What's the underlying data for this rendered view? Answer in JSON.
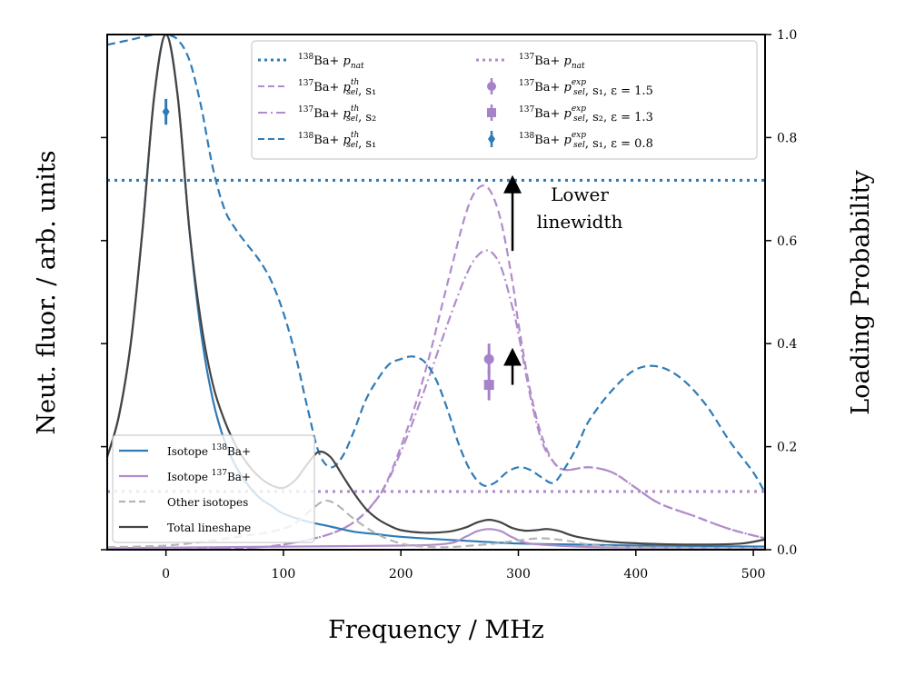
{
  "chart_data": {
    "type": "line",
    "title": "",
    "xlabel": "Frequency / MHz",
    "ylabel_left": "Neut. fluor. / arb. units",
    "ylabel_right": "Loading Probability",
    "xlim": [
      -50,
      510
    ],
    "ylim_left": [
      0,
      1
    ],
    "ylim_right": [
      0.0,
      1.0
    ],
    "x_ticks": [
      0,
      100,
      200,
      300,
      400,
      500
    ],
    "x_tick_labels": [
      "0",
      "100",
      "200",
      "300",
      "400",
      "500"
    ],
    "right_ticks": [
      0.0,
      0.2,
      0.4,
      0.6,
      0.8,
      1.0
    ],
    "right_tick_labels": [
      "0.0",
      "0.2",
      "0.4",
      "0.6",
      "0.8",
      "1.0"
    ],
    "left_ticks": [
      0,
      0.2,
      0.4,
      0.6,
      0.8
    ],
    "lineshape_series": [
      {
        "name": "Isotope 138Ba+",
        "label_base": "Isotope ",
        "label_sup": "138",
        "label_tail": "Ba+",
        "color": "#2f7bb6",
        "style": "solid",
        "x": [
          -50,
          -40,
          -30,
          -20,
          -10,
          0,
          10,
          20,
          30,
          40,
          50,
          60,
          70,
          80,
          90,
          100,
          120,
          140,
          160,
          180,
          200,
          250,
          300,
          350,
          400,
          450,
          510
        ],
        "y": [
          0.18,
          0.26,
          0.4,
          0.62,
          0.88,
          1.0,
          0.88,
          0.62,
          0.42,
          0.29,
          0.21,
          0.16,
          0.125,
          0.1,
          0.085,
          0.07,
          0.055,
          0.045,
          0.035,
          0.03,
          0.025,
          0.018,
          0.012,
          0.01,
          0.008,
          0.007,
          0.006
        ]
      },
      {
        "name": "Isotope 137Ba+",
        "label_base": "Isotope ",
        "label_sup": "137",
        "label_tail": "Ba+",
        "color": "#b08ccc",
        "style": "solid",
        "x": [
          -50,
          0,
          100,
          200,
          240,
          255,
          265,
          275,
          285,
          295,
          310,
          350,
          400,
          510
        ],
        "y": [
          0.003,
          0.004,
          0.006,
          0.008,
          0.012,
          0.025,
          0.036,
          0.04,
          0.036,
          0.024,
          0.012,
          0.006,
          0.004,
          0.003
        ]
      },
      {
        "name": "Other isotopes",
        "color": "#b5b5b5",
        "style": "dashed",
        "x": [
          -50,
          0,
          40,
          70,
          90,
          105,
          115,
          125,
          135,
          145,
          160,
          180,
          200,
          220,
          240,
          260,
          280,
          300,
          320,
          340,
          360,
          380,
          420,
          510
        ],
        "y": [
          0.005,
          0.008,
          0.018,
          0.028,
          0.035,
          0.045,
          0.06,
          0.08,
          0.095,
          0.088,
          0.06,
          0.03,
          0.012,
          0.006,
          0.005,
          0.008,
          0.012,
          0.018,
          0.022,
          0.018,
          0.01,
          0.006,
          0.004,
          0.003
        ]
      },
      {
        "name": "Total lineshape",
        "color": "#444444",
        "style": "solid",
        "x": [
          -50,
          -40,
          -30,
          -20,
          -10,
          0,
          10,
          20,
          30,
          40,
          50,
          60,
          70,
          80,
          90,
          100,
          110,
          120,
          130,
          140,
          150,
          160,
          170,
          180,
          190,
          200,
          220,
          240,
          255,
          265,
          275,
          285,
          295,
          305,
          315,
          325,
          335,
          350,
          380,
          420,
          460,
          490,
          510
        ],
        "y": [
          0.18,
          0.26,
          0.4,
          0.62,
          0.88,
          1.0,
          0.88,
          0.62,
          0.44,
          0.32,
          0.25,
          0.2,
          0.165,
          0.14,
          0.125,
          0.12,
          0.135,
          0.165,
          0.19,
          0.18,
          0.145,
          0.11,
          0.08,
          0.06,
          0.047,
          0.038,
          0.033,
          0.035,
          0.043,
          0.053,
          0.058,
          0.053,
          0.042,
          0.037,
          0.038,
          0.04,
          0.036,
          0.025,
          0.015,
          0.011,
          0.01,
          0.012,
          0.02
        ]
      }
    ],
    "probability_series": [
      {
        "name": "138Ba+ p_nat",
        "label_sup": "138",
        "label_tail": "Ba+",
        "label_p": "p",
        "label_sub": "nat",
        "label_supp": "",
        "label_extra": "",
        "color": "#2f7bb6",
        "style": "dotted",
        "x": [
          -50,
          510
        ],
        "y": [
          0.717,
          0.717
        ]
      },
      {
        "name": "137Ba+ p_nat",
        "label_sup": "137",
        "label_tail": "Ba+",
        "label_p": "p",
        "label_sub": "nat",
        "label_supp": "",
        "label_extra": "",
        "color": "#b08ccc",
        "style": "dotted",
        "x": [
          -50,
          510
        ],
        "y": [
          0.113,
          0.113
        ]
      },
      {
        "name": "137Ba+ p_sel^th, s1",
        "label_sup": "137",
        "label_tail": "Ba+",
        "label_p": "p",
        "label_sub": "sel",
        "label_supp": "th",
        "label_extra": ", s₁",
        "color": "#b08ccc",
        "style": "dashed",
        "x": [
          -50,
          0,
          50,
          100,
          150,
          180,
          200,
          220,
          240,
          255,
          265,
          275,
          285,
          295,
          300,
          310,
          320,
          330,
          340,
          360,
          380,
          400,
          420,
          450,
          480,
          510
        ],
        "y": [
          0.0,
          0.0,
          0.002,
          0.01,
          0.04,
          0.1,
          0.2,
          0.34,
          0.52,
          0.65,
          0.7,
          0.7,
          0.64,
          0.52,
          0.44,
          0.31,
          0.22,
          0.17,
          0.155,
          0.16,
          0.15,
          0.12,
          0.09,
          0.065,
          0.04,
          0.022
        ]
      },
      {
        "name": "137Ba+ p_sel^th, s2",
        "label_sup": "137",
        "label_tail": "Ba+",
        "label_p": "p",
        "label_sub": "sel",
        "label_supp": "th",
        "label_extra": ", s₂",
        "color": "#b08ccc",
        "style": "dashdot",
        "x": [
          -50,
          0,
          50,
          100,
          150,
          180,
          200,
          220,
          240,
          255,
          265,
          275,
          285,
          295,
          300,
          310,
          320,
          330,
          340,
          360,
          380,
          400,
          420,
          450,
          480,
          510
        ],
        "y": [
          0.0,
          0.0,
          0.002,
          0.01,
          0.04,
          0.1,
          0.19,
          0.31,
          0.44,
          0.53,
          0.57,
          0.58,
          0.55,
          0.47,
          0.42,
          0.3,
          0.21,
          0.17,
          0.155,
          0.16,
          0.15,
          0.12,
          0.09,
          0.065,
          0.04,
          0.022
        ]
      },
      {
        "name": "138Ba+ p_sel^th, s1",
        "label_sup": "138",
        "label_tail": "Ba+",
        "label_p": "p",
        "label_sub": "sel",
        "label_supp": "th",
        "label_extra": ", s₁",
        "color": "#2f7bb6",
        "style": "dashed",
        "x": [
          -50,
          -30,
          -10,
          0,
          10,
          20,
          30,
          40,
          50,
          60,
          70,
          80,
          90,
          100,
          110,
          120,
          130,
          140,
          150,
          160,
          170,
          180,
          190,
          200,
          210,
          220,
          230,
          240,
          250,
          260,
          270,
          280,
          290,
          300,
          310,
          320,
          330,
          340,
          350,
          360,
          380,
          400,
          420,
          440,
          460,
          480,
          500,
          510
        ],
        "y": [
          0.98,
          0.99,
          1.0,
          1.0,
          0.99,
          0.95,
          0.86,
          0.74,
          0.66,
          0.62,
          0.59,
          0.56,
          0.52,
          0.46,
          0.38,
          0.28,
          0.19,
          0.16,
          0.18,
          0.23,
          0.29,
          0.33,
          0.36,
          0.37,
          0.375,
          0.365,
          0.33,
          0.27,
          0.2,
          0.15,
          0.125,
          0.13,
          0.15,
          0.16,
          0.155,
          0.14,
          0.13,
          0.16,
          0.2,
          0.25,
          0.31,
          0.35,
          0.355,
          0.33,
          0.28,
          0.21,
          0.15,
          0.11
        ]
      }
    ],
    "error_points": [
      {
        "name": "137Ba+ p_sel^exp, s1, ε = 1.5",
        "label_sup": "137",
        "label_tail": "Ba+",
        "label_p": "p",
        "label_sub": "sel",
        "label_supp": "exp",
        "label_extra": ", s₁, ε = 1.5",
        "x": 275,
        "y": 0.37,
        "yerr": 0.03,
        "marker": "circle",
        "color": "#a682c8"
      },
      {
        "name": "137Ba+ p_sel^exp, s2, ε = 1.3",
        "label_sup": "137",
        "label_tail": "Ba+",
        "label_p": "p",
        "label_sub": "sel",
        "label_supp": "exp",
        "label_extra": ", s₂, ε = 1.3",
        "x": 275,
        "y": 0.32,
        "yerr": 0.03,
        "marker": "square",
        "color": "#a682c8"
      },
      {
        "name": "138Ba+ p_sel^exp, s1, ε = 0.8",
        "label_sup": "138",
        "label_tail": "Ba+",
        "label_p": "p",
        "label_sub": "sel",
        "label_supp": "exp",
        "label_extra": ", s₁, ε = 0.8",
        "x": 0,
        "y": 0.85,
        "yerr": 0.025,
        "marker": "diamond",
        "color": "#2f7bb6"
      }
    ],
    "annotations": [
      {
        "text_lines": [
          "Lower",
          "linewidth"
        ],
        "arrow_from": [
          295,
          0.58
        ],
        "arrow_to": [
          295,
          0.72
        ]
      },
      {
        "text_lines": [],
        "arrow_from": [
          295,
          0.32
        ],
        "arrow_to": [
          295,
          0.385
        ]
      }
    ],
    "legend_placement": "top-right",
    "lineshape_legend_placement": "lower-left"
  }
}
